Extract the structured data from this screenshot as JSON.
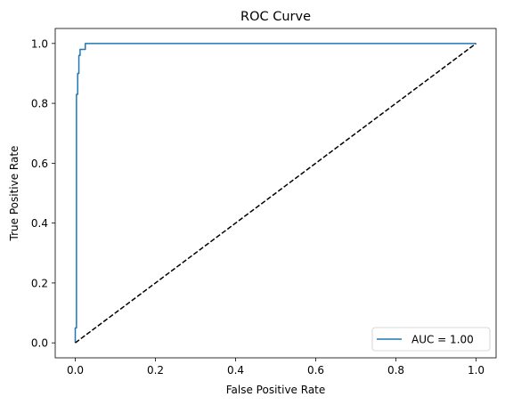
{
  "chart_data": {
    "type": "line",
    "title": "ROC Curve",
    "xlabel": "False Positive Rate",
    "ylabel": "True Positive Rate",
    "xlim": [
      -0.05,
      1.05
    ],
    "ylim": [
      -0.05,
      1.05
    ],
    "xticks": [
      0.0,
      0.2,
      0.4,
      0.6,
      0.8,
      1.0
    ],
    "yticks": [
      0.0,
      0.2,
      0.4,
      0.6,
      0.8,
      1.0
    ],
    "xtick_labels": [
      "0.0",
      "0.2",
      "0.4",
      "0.6",
      "0.8",
      "1.0"
    ],
    "ytick_labels": [
      "0.0",
      "0.2",
      "0.4",
      "0.6",
      "0.8",
      "1.0"
    ],
    "grid": false,
    "legend_position": "lower-right",
    "series": [
      {
        "name": "AUC = 1.00",
        "color": "#1f77b4",
        "style": "solid",
        "x": [
          0.0,
          0.0,
          0.003,
          0.003,
          0.006,
          0.006,
          0.009,
          0.009,
          0.012,
          0.012,
          0.025,
          0.025,
          1.0
        ],
        "y": [
          0.0,
          0.05,
          0.05,
          0.83,
          0.83,
          0.9,
          0.9,
          0.96,
          0.96,
          0.98,
          0.98,
          1.0,
          1.0
        ]
      },
      {
        "color": "#000000",
        "style": "dashed",
        "x": [
          0.0,
          1.0
        ],
        "y": [
          0.0,
          1.0
        ]
      }
    ]
  }
}
